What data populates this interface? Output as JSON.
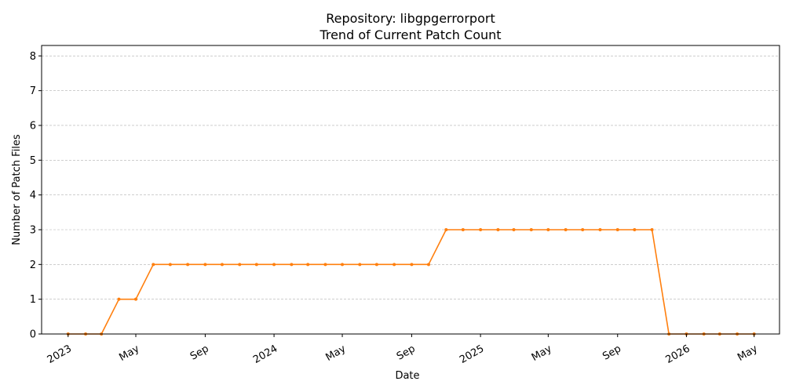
{
  "chart_data": {
    "type": "line",
    "title_lines": [
      "Repository: libgpgerrorport",
      "Trend of Current Patch Count"
    ],
    "xlabel": "Date",
    "ylabel": "Number of Patch Files",
    "ylim": [
      0,
      8.3
    ],
    "xlim": [
      "2022-11-15",
      "2026-06-15"
    ],
    "y_ticks": [
      0,
      1,
      2,
      3,
      4,
      5,
      6,
      7,
      8
    ],
    "x_ticks": [
      {
        "date": "2023-01-01",
        "label": "2023"
      },
      {
        "date": "2023-05-01",
        "label": "May"
      },
      {
        "date": "2023-09-01",
        "label": "Sep"
      },
      {
        "date": "2024-01-01",
        "label": "2024"
      },
      {
        "date": "2024-05-01",
        "label": "May"
      },
      {
        "date": "2024-09-01",
        "label": "Sep"
      },
      {
        "date": "2025-01-01",
        "label": "2025"
      },
      {
        "date": "2025-05-01",
        "label": "May"
      },
      {
        "date": "2025-09-01",
        "label": "Sep"
      },
      {
        "date": "2026-01-01",
        "label": "2026"
      },
      {
        "date": "2026-05-01",
        "label": "May"
      }
    ],
    "grid": "y-dashed",
    "line_color": "#ff7f0e",
    "series": [
      {
        "x": [
          "2023-01-01",
          "2023-02-01",
          "2023-03-01",
          "2023-04-01",
          "2023-05-01",
          "2023-06-01",
          "2023-07-01",
          "2023-08-01",
          "2023-09-01",
          "2023-10-01",
          "2023-11-01",
          "2023-12-01",
          "2024-01-01",
          "2024-02-01",
          "2024-03-01",
          "2024-04-01",
          "2024-05-01",
          "2024-06-01",
          "2024-07-01",
          "2024-08-01",
          "2024-09-01",
          "2024-10-01",
          "2024-11-01",
          "2024-12-01",
          "2025-01-01",
          "2025-02-01",
          "2025-03-01",
          "2025-04-01",
          "2025-05-01",
          "2025-06-01",
          "2025-07-01",
          "2025-08-01",
          "2025-09-01",
          "2025-10-01",
          "2025-11-01",
          "2025-12-01",
          "2026-01-01",
          "2026-02-01",
          "2026-03-01",
          "2026-04-01",
          "2026-05-01"
        ],
        "values": [
          0,
          0,
          0,
          1,
          1,
          2,
          2,
          2,
          2,
          2,
          2,
          2,
          2,
          2,
          2,
          2,
          2,
          2,
          2,
          2,
          2,
          2,
          3,
          3,
          3,
          3,
          3,
          3,
          3,
          3,
          3,
          3,
          3,
          3,
          3,
          0,
          0,
          0,
          0,
          0,
          0
        ]
      }
    ]
  }
}
